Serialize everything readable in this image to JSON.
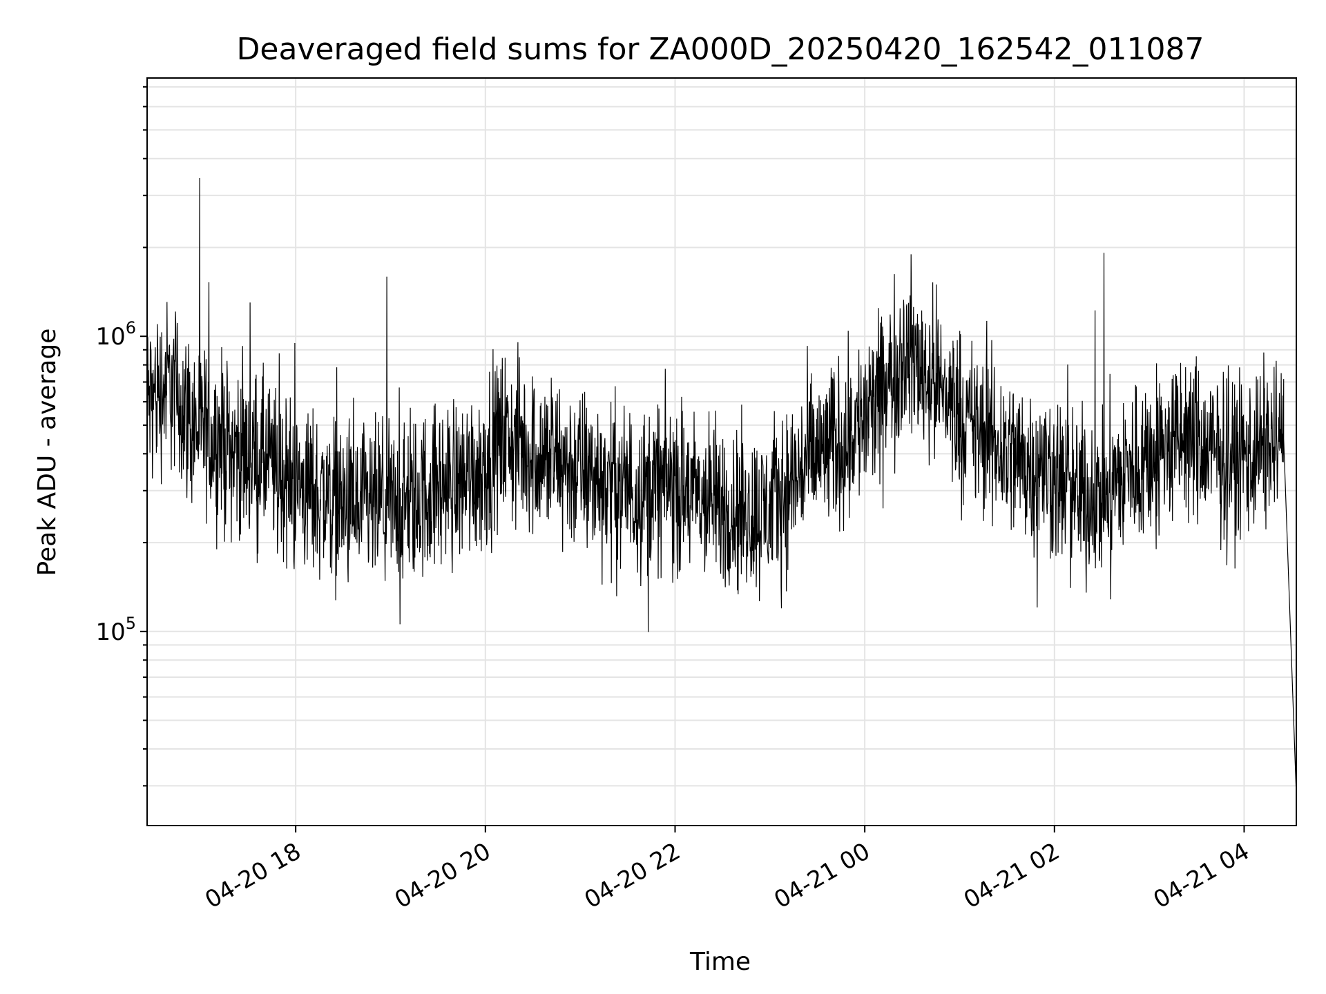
{
  "chart_data": {
    "type": "line",
    "title": "Deaveraged field sums for ZA000D_20250420_162542_011087",
    "xlabel": "Time",
    "ylabel": "Peak ADU - average",
    "x_scale": "time",
    "y_scale": "log",
    "xlim": [
      "2025-04-20 16:26",
      "2025-04-21 04:33"
    ],
    "ylim": [
      22000,
      7500000
    ],
    "x_ticks": [
      "04-20 18",
      "04-20 20",
      "04-20 22",
      "04-21 00",
      "04-21 02",
      "04-21 04"
    ],
    "y_ticks": [
      {
        "base": "10",
        "exp": "5",
        "value": 100000
      },
      {
        "base": "10",
        "exp": "6",
        "value": 1000000
      }
    ],
    "grid": true,
    "line_color": "#000000",
    "series": [
      {
        "x": [
          "2025-04-20 16:26",
          "2025-04-20 16:40",
          "2025-04-20 16:55",
          "2025-04-20 17:10",
          "2025-04-20 17:25",
          "2025-04-20 17:40",
          "2025-04-20 17:55",
          "2025-04-20 18:10",
          "2025-04-20 18:25",
          "2025-04-20 18:40",
          "2025-04-20 18:55",
          "2025-04-20 19:10",
          "2025-04-20 19:25",
          "2025-04-20 19:40",
          "2025-04-20 19:55",
          "2025-04-20 20:10",
          "2025-04-20 20:25",
          "2025-04-20 20:40",
          "2025-04-20 20:55",
          "2025-04-20 21:10",
          "2025-04-20 21:25",
          "2025-04-20 21:40",
          "2025-04-20 21:55",
          "2025-04-20 22:10",
          "2025-04-20 22:25",
          "2025-04-20 22:40",
          "2025-04-20 22:55",
          "2025-04-20 23:10",
          "2025-04-20 23:25",
          "2025-04-20 23:40",
          "2025-04-20 23:55",
          "2025-04-21 00:10",
          "2025-04-21 00:25",
          "2025-04-21 00:40",
          "2025-04-21 00:55",
          "2025-04-21 01:10",
          "2025-04-21 01:25",
          "2025-04-21 01:40",
          "2025-04-21 01:55",
          "2025-04-21 02:10",
          "2025-04-21 02:25",
          "2025-04-21 02:40",
          "2025-04-21 02:55",
          "2025-04-21 03:10",
          "2025-04-21 03:25",
          "2025-04-21 03:40",
          "2025-04-21 03:55",
          "2025-04-21 04:10",
          "2025-04-21 04:25",
          "2025-04-21 04:33"
        ],
        "y": [
          600000,
          700000,
          500000,
          450000,
          400000,
          380000,
          320000,
          300000,
          280000,
          250000,
          270000,
          260000,
          300000,
          320000,
          350000,
          450000,
          420000,
          380000,
          360000,
          330000,
          310000,
          300000,
          320000,
          290000,
          270000,
          260000,
          250000,
          300000,
          380000,
          420000,
          500000,
          600000,
          900000,
          750000,
          600000,
          480000,
          420000,
          380000,
          350000,
          300000,
          280000,
          320000,
          380000,
          420000,
          450000,
          400000,
          380000,
          420000,
          450000,
          28000
        ]
      }
    ]
  }
}
